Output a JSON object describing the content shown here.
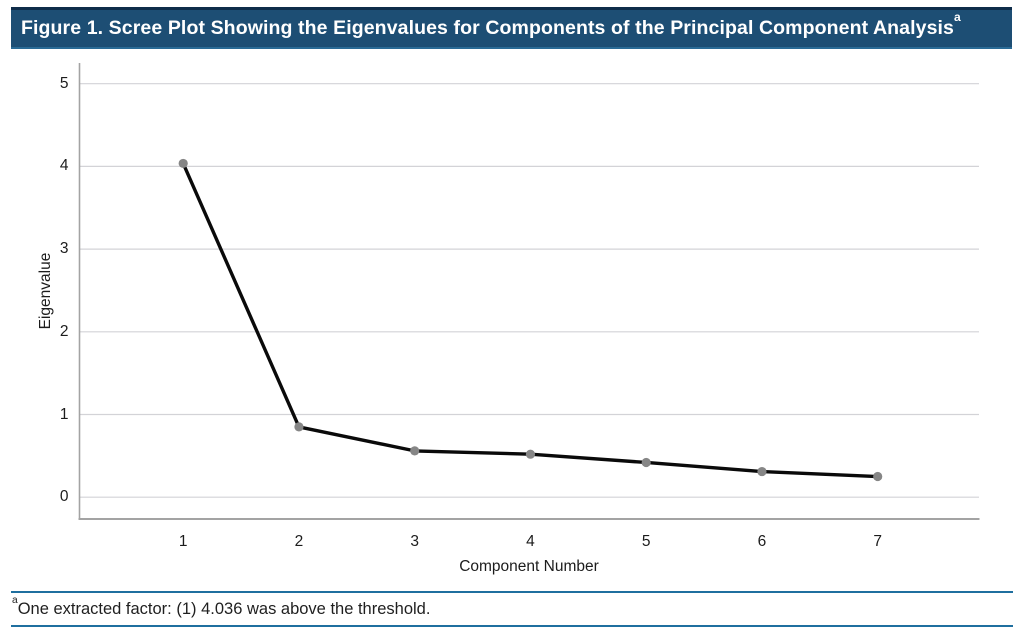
{
  "figure": {
    "title": "Figure 1. Scree Plot Showing the Eigenvalues for Components of the Principal Component Analysis",
    "title_superscript": "a",
    "footnote_superscript": "a",
    "footnote_text": "One extracted factor: (1) 4.036 was above the threshold."
  },
  "chart_data": {
    "type": "line",
    "title": "",
    "xlabel": "Component Number",
    "ylabel": "Eigenvalue",
    "x": [
      1,
      2,
      3,
      4,
      5,
      6,
      7
    ],
    "series": [
      {
        "name": "Eigenvalue",
        "values": [
          4.036,
          0.85,
          0.56,
          0.52,
          0.42,
          0.31,
          0.25
        ]
      }
    ],
    "xticks": [
      "1",
      "2",
      "3",
      "4",
      "5",
      "6",
      "7"
    ],
    "yticks": [
      5,
      4,
      3,
      2,
      1,
      0
    ],
    "ylim": [
      -0.27,
      5.25
    ],
    "xlim": [
      0.1,
      7.88
    ],
    "grid": "horizontal-only",
    "legend": "none",
    "marker": "circle"
  },
  "colors": {
    "title_bar_bg": "#1d4e74",
    "title_bar_top_border": "#0f2d4a",
    "title_bar_bottom_border": "#2a6b96",
    "title_text": "#ffffff",
    "footnote_rule": "#1f6f9f",
    "axis_line": "#a3a3a3",
    "gridline": "#d3d3d7",
    "series_line": "#0a0a0a",
    "marker_fill": "#868686",
    "tick_text": "#1c1c1c"
  }
}
